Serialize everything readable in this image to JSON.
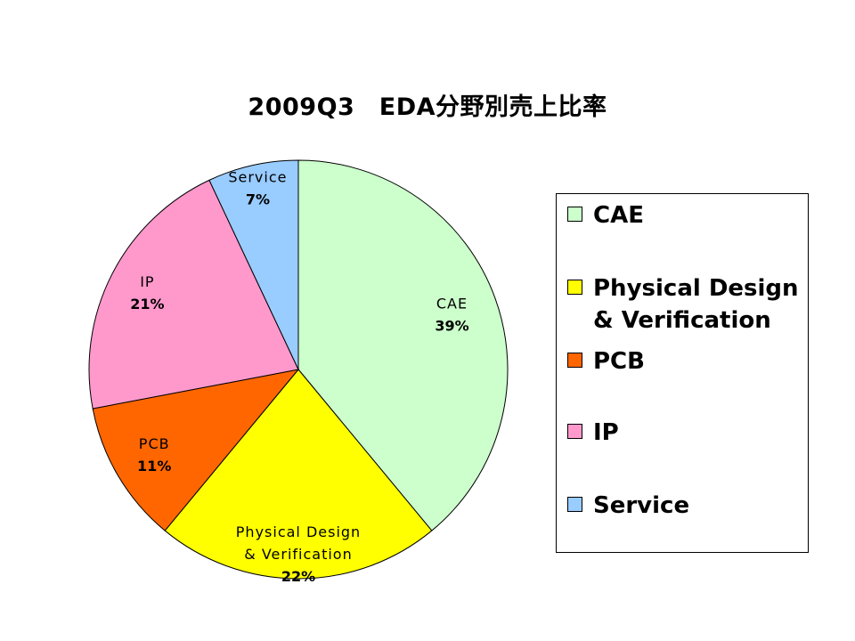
{
  "chart_data": {
    "type": "pie",
    "title": "2009Q3　EDA分野別売上比率",
    "slices": [
      {
        "category": "CAE",
        "label_lines": [
          "CAE"
        ],
        "legend_lines": [
          "CAE"
        ],
        "value": 39,
        "value_label": "39%",
        "color": "#CCFFCC"
      },
      {
        "category": "Physical Design & Verification",
        "label_lines": [
          "Physical Design",
          "& Verification"
        ],
        "legend_lines": [
          "Physical Design",
          "& Verification"
        ],
        "value": 22,
        "value_label": "22%",
        "color": "#FFFF00"
      },
      {
        "category": "PCB",
        "label_lines": [
          "PCB"
        ],
        "legend_lines": [
          "PCB"
        ],
        "value": 11,
        "value_label": "11%",
        "color": "#FF6600"
      },
      {
        "category": "IP",
        "label_lines": [
          "IP"
        ],
        "legend_lines": [
          "IP"
        ],
        "value": 21,
        "value_label": "21%",
        "color": "#FF99CC"
      },
      {
        "category": "Service",
        "label_lines": [
          "Service"
        ],
        "legend_lines": [
          "Service"
        ],
        "value": 7,
        "value_label": "7%",
        "color": "#99CCFF"
      }
    ],
    "start_angle": "12 o'clock",
    "direction": "clockwise",
    "legend_position": "right"
  }
}
